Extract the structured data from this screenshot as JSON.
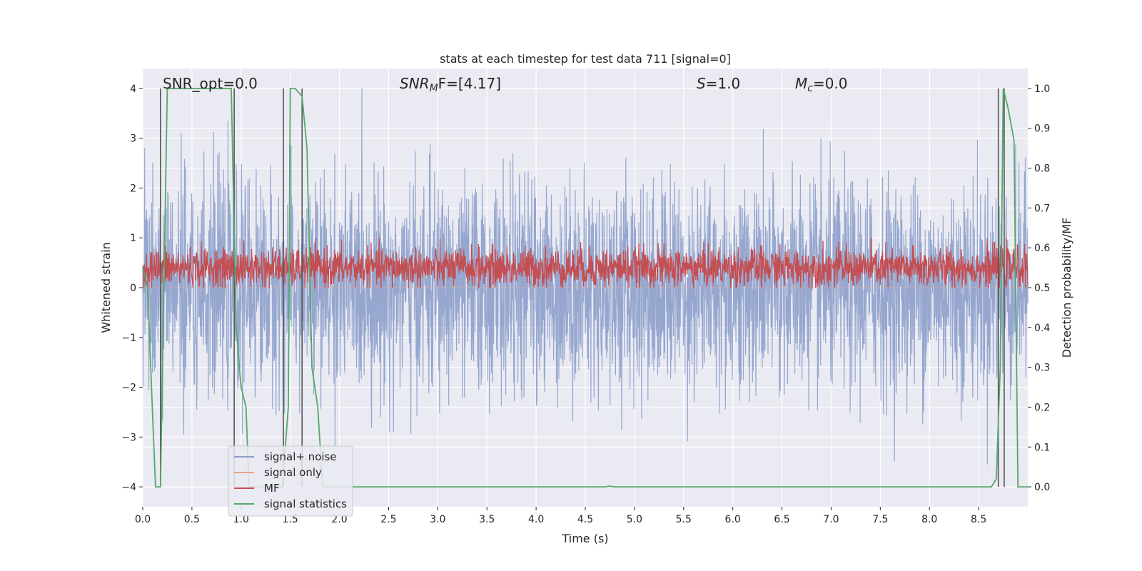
{
  "chart_data": {
    "type": "line",
    "title": "stats at each timestep for test data 711 [signal=0]",
    "xlabel": "Time (s)",
    "ylabel": "Whitened strain",
    "y2label": "Detection probability/MF",
    "xlim": [
      0.0,
      9.0
    ],
    "ylim": [
      -4.4,
      4.4
    ],
    "y2lim": [
      -0.05,
      1.05
    ],
    "xticks": [
      "0.0",
      "0.5",
      "1.0",
      "1.5",
      "2.0",
      "2.5",
      "3.0",
      "3.5",
      "4.0",
      "4.5",
      "5.0",
      "5.5",
      "6.0",
      "6.5",
      "7.0",
      "7.5",
      "8.0",
      "8.5"
    ],
    "yticks": [
      "−4",
      "−3",
      "−2",
      "−1",
      "0",
      "1",
      "2",
      "3",
      "4"
    ],
    "y2ticks": [
      "0.0",
      "0.1",
      "0.2",
      "0.3",
      "0.4",
      "0.5",
      "0.6",
      "0.7",
      "0.8",
      "0.9",
      "1.0"
    ],
    "grid": true,
    "legend_position": "lower-left",
    "annotations": [
      {
        "id": "snr-opt",
        "text": "SNR_opt=0.0"
      },
      {
        "id": "snr-mf",
        "text": "SNR",
        "sub": "M",
        "suffix": "F=[4.17]"
      },
      {
        "id": "s-val",
        "text": "S",
        "suffix": "=1.0"
      },
      {
        "id": "mc-val",
        "text": "M",
        "sub": "c",
        "suffix": "=0.0"
      }
    ],
    "series": [
      {
        "name": "signal+ noise",
        "color": "#8da0cb",
        "kind": "noise",
        "axis": "left",
        "approx_range": [
          -3.8,
          4.0
        ]
      },
      {
        "name": "signal only",
        "color": "#e8a58a",
        "kind": "flat",
        "axis": "left",
        "value": 0.0
      },
      {
        "name": "MF",
        "color": "#c44e52",
        "kind": "noise",
        "axis": "right",
        "approx_range": [
          0.5,
          0.6
        ]
      },
      {
        "name": "signal statistics",
        "color": "#55a868",
        "axis": "right",
        "x": [
          0.0,
          0.05,
          0.1,
          0.13,
          0.18,
          0.25,
          0.3,
          0.6,
          0.9,
          0.95,
          1.0,
          1.05,
          1.08,
          1.1,
          1.3,
          1.42,
          1.48,
          1.5,
          1.55,
          1.62,
          1.67,
          1.72,
          1.78,
          1.83,
          2.0,
          3.0,
          4.0,
          4.5,
          4.7,
          4.75,
          4.8,
          5.0,
          6.0,
          7.0,
          8.0,
          8.5,
          8.63,
          8.68,
          8.72,
          8.75,
          8.8,
          8.86,
          8.9,
          9.0
        ],
        "values": [
          0.55,
          0.5,
          0.18,
          0.0,
          0.0,
          1.0,
          1.0,
          1.0,
          1.0,
          0.4,
          0.25,
          0.2,
          0.0,
          0.0,
          0.0,
          0.0,
          0.2,
          1.0,
          1.0,
          0.98,
          0.85,
          0.3,
          0.2,
          0.0,
          0.0,
          0.0,
          0.0,
          0.0,
          0.0,
          0.002,
          0.0,
          0.0,
          0.0,
          0.0,
          0.0,
          0.0,
          0.0,
          0.02,
          0.3,
          1.0,
          0.95,
          0.87,
          0.0,
          0.0
        ]
      }
    ],
    "vlines": [
      0.18,
      0.93,
      1.43,
      1.62,
      8.7,
      8.76
    ],
    "vline_color": "#555555"
  }
}
